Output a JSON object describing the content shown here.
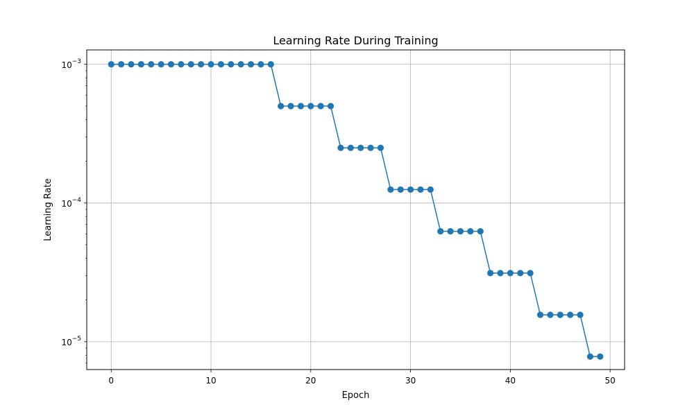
{
  "chart_data": {
    "type": "line",
    "title": "Learning Rate During Training",
    "xlabel": "Epoch",
    "ylabel": "Learning Rate",
    "yscale": "log",
    "grid": true,
    "xlim": [
      -2.45,
      51.45
    ],
    "ylim": [
      6.3e-06,
      0.00127
    ],
    "x_ticks": [
      {
        "value": 0,
        "label": "0"
      },
      {
        "value": 10,
        "label": "10"
      },
      {
        "value": 20,
        "label": "20"
      },
      {
        "value": 30,
        "label": "30"
      },
      {
        "value": 40,
        "label": "40"
      },
      {
        "value": 50,
        "label": "50"
      }
    ],
    "y_ticks": [
      {
        "value": 0.001,
        "base": "10",
        "exp": "−3"
      },
      {
        "value": 0.0001,
        "base": "10",
        "exp": "−4"
      },
      {
        "value": 1e-05,
        "base": "10",
        "exp": "−5"
      }
    ],
    "series": [
      {
        "color": "#1f77b4",
        "marker": "circle",
        "x": [
          0,
          1,
          2,
          3,
          4,
          5,
          6,
          7,
          8,
          9,
          10,
          11,
          12,
          13,
          14,
          15,
          16,
          17,
          18,
          19,
          20,
          21,
          22,
          23,
          24,
          25,
          26,
          27,
          28,
          29,
          30,
          31,
          32,
          33,
          34,
          35,
          36,
          37,
          38,
          39,
          40,
          41,
          42,
          43,
          44,
          45,
          46,
          47,
          48,
          49
        ],
        "y": [
          0.001,
          0.001,
          0.001,
          0.001,
          0.001,
          0.001,
          0.001,
          0.001,
          0.001,
          0.001,
          0.001,
          0.001,
          0.001,
          0.001,
          0.001,
          0.001,
          0.001,
          0.0005,
          0.0005,
          0.0005,
          0.0005,
          0.0005,
          0.0005,
          0.00025,
          0.00025,
          0.00025,
          0.00025,
          0.00025,
          0.000125,
          0.000125,
          0.000125,
          0.000125,
          0.000125,
          6.25e-05,
          6.25e-05,
          6.25e-05,
          6.25e-05,
          6.25e-05,
          3.125e-05,
          3.125e-05,
          3.125e-05,
          3.125e-05,
          3.125e-05,
          1.5625e-05,
          1.5625e-05,
          1.5625e-05,
          1.5625e-05,
          1.5625e-05,
          7.8125e-06,
          7.8125e-06
        ]
      }
    ]
  }
}
